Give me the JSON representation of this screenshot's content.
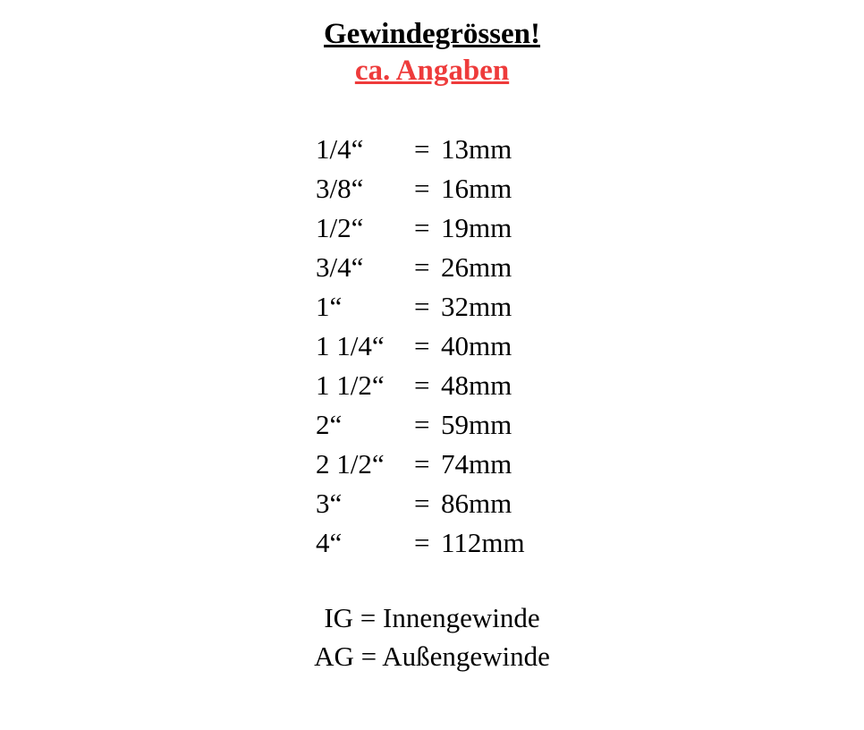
{
  "header": {
    "title": "Gewindegrössen!",
    "subtitle": "ca. Angaben"
  },
  "sizes": [
    {
      "label": "1/4“",
      "value": "13mm"
    },
    {
      "label": "3/8“",
      "value": "16mm"
    },
    {
      "label": "1/2“",
      "value": "19mm"
    },
    {
      "label": "3/4“",
      "value": "26mm"
    },
    {
      "label": "1“",
      "value": "32mm"
    },
    {
      "label": "1 1/4“",
      "value": "40mm"
    },
    {
      "label": "1 1/2“",
      "value": "48mm"
    },
    {
      "label": "2“",
      "value": "59mm"
    },
    {
      "label": "2 1/2“",
      "value": "74mm"
    },
    {
      "label": "3“",
      "value": "86mm"
    },
    {
      "label": "4“",
      "value": "112mm"
    }
  ],
  "legend": [
    "IG = Innengewinde",
    "AG = Außengewinde"
  ],
  "style": {
    "title_color": "#000000",
    "subtitle_color": "#ee3b3b",
    "text_color": "#000000",
    "background_color": "#ffffff",
    "title_fontsize": 33,
    "body_fontsize": 31,
    "font_family": "Georgia, 'Times New Roman', serif",
    "font_weight_title": "bold",
    "underline_title": true
  }
}
